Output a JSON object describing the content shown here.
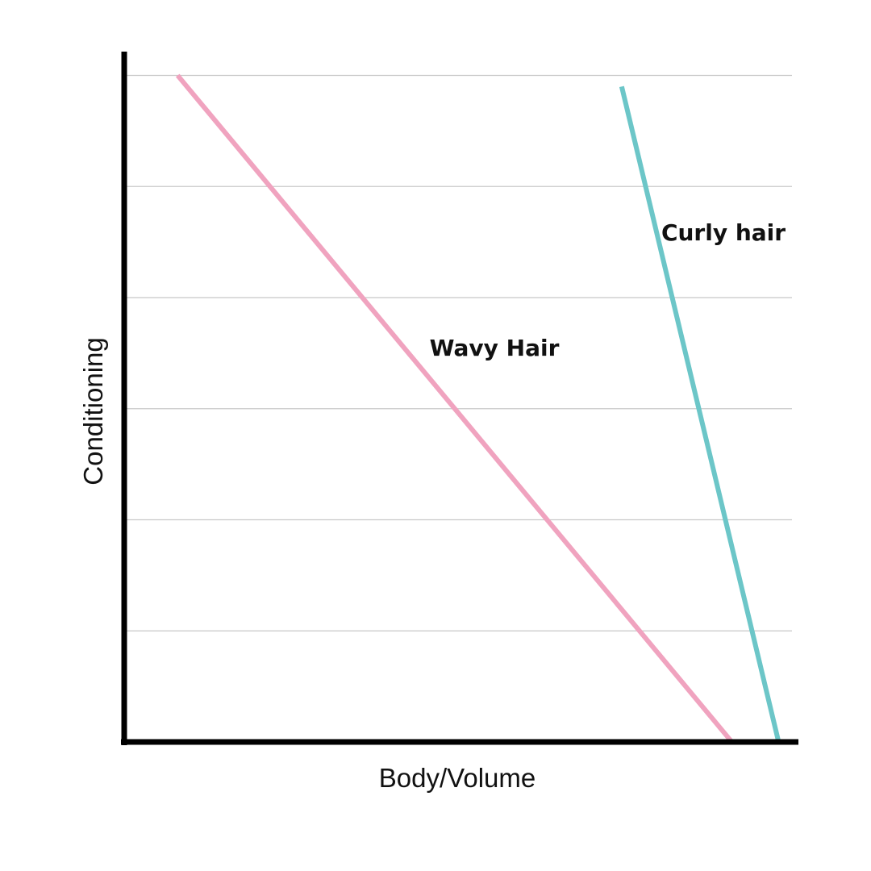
{
  "chart_data": {
    "type": "line",
    "title": "",
    "xlabel": "Body/Volume",
    "ylabel": "Conditioning",
    "xlim": [
      0,
      100
    ],
    "ylim": [
      0,
      6
    ],
    "grid": true,
    "x_ticks_shown": false,
    "y_ticks_shown": false,
    "series": [
      {
        "name": "Wavy Hair",
        "color": "#f0a3bf",
        "points": [
          [
            8,
            6.0
          ],
          [
            91,
            0.0
          ]
        ]
      },
      {
        "name": "Curly hair",
        "color": "#6cc6c8",
        "points": [
          [
            74.5,
            5.9
          ],
          [
            98,
            0.0
          ]
        ]
      }
    ]
  }
}
